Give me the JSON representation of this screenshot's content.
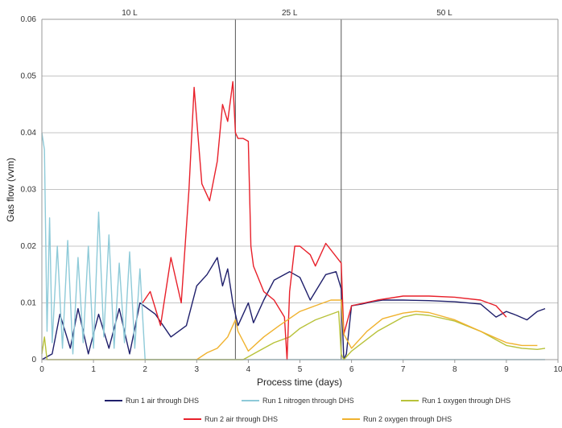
{
  "chart_data": {
    "type": "line",
    "xlabel": "Process time (days)",
    "ylabel": "Gas flow (vvm)",
    "xlim": [
      0,
      10
    ],
    "ylim": [
      0,
      0.06
    ],
    "x_ticks": [
      "0",
      "1",
      "2",
      "3",
      "4",
      "5",
      "6",
      "7",
      "8",
      "9",
      "10"
    ],
    "y_ticks": [
      "0",
      "0.01",
      "0.02",
      "0.03",
      "0.04",
      "0.05",
      "0.06"
    ],
    "grid": "horizontal",
    "legend_position": "bottom",
    "phase_dividers": [
      3.75,
      5.8
    ],
    "phase_labels": [
      {
        "label": "10 L",
        "x": 1.7
      },
      {
        "label": "25 L",
        "x": 4.8
      },
      {
        "label": "50 L",
        "x": 7.8
      }
    ],
    "series": [
      {
        "name": "Run 1 air through DHS",
        "color": "#1f1f6b",
        "x": [
          0,
          0.2,
          0.35,
          0.55,
          0.7,
          0.9,
          1.1,
          1.3,
          1.5,
          1.7,
          1.9,
          2.2,
          2.5,
          2.8,
          3.0,
          3.2,
          3.4,
          3.5,
          3.6,
          3.7,
          3.8,
          4.0,
          4.1,
          4.3,
          4.5,
          4.8,
          5.0,
          5.2,
          5.5,
          5.7,
          5.8,
          5.85,
          5.9,
          6.0,
          6.2,
          6.4,
          6.6,
          7.0,
          7.5,
          8.0,
          8.5,
          8.8,
          9.0,
          9.2,
          9.4,
          9.6,
          9.75
        ],
        "y": [
          0.0,
          0.001,
          0.008,
          0.002,
          0.009,
          0.001,
          0.008,
          0.002,
          0.009,
          0.001,
          0.01,
          0.008,
          0.004,
          0.006,
          0.013,
          0.015,
          0.018,
          0.013,
          0.016,
          0.01,
          0.006,
          0.01,
          0.0065,
          0.0105,
          0.014,
          0.0155,
          0.0145,
          0.0105,
          0.015,
          0.0155,
          0.0125,
          0.0,
          0.001,
          0.0095,
          0.0098,
          0.0102,
          0.0105,
          0.0105,
          0.0104,
          0.0102,
          0.0098,
          0.0075,
          0.0085,
          0.0078,
          0.007,
          0.0085,
          0.009
        ]
      },
      {
        "name": "Run 1 nitrogen through DHS",
        "color": "#8ecad8",
        "x": [
          0,
          0.05,
          0.1,
          0.15,
          0.2,
          0.3,
          0.4,
          0.5,
          0.6,
          0.7,
          0.8,
          0.9,
          1.0,
          1.1,
          1.2,
          1.3,
          1.4,
          1.5,
          1.6,
          1.7,
          1.8,
          1.9,
          2.0,
          3.0,
          4.0,
          5.0,
          6.0,
          7.0,
          8.0,
          9.0,
          9.75
        ],
        "y": [
          0.04,
          0.037,
          0.005,
          0.025,
          0.003,
          0.02,
          0.002,
          0.021,
          0.001,
          0.018,
          0.003,
          0.02,
          0.002,
          0.026,
          0.004,
          0.022,
          0.002,
          0.017,
          0.003,
          0.019,
          0.002,
          0.016,
          0.0,
          0.0,
          0.0,
          0.0,
          0.0,
          0.0,
          0.0,
          0.0,
          0.0
        ]
      },
      {
        "name": "Run 1 oxygen through DHS",
        "color": "#b8c23a",
        "x": [
          0,
          0.05,
          0.1,
          1.0,
          2.0,
          3.0,
          3.9,
          4.0,
          4.2,
          4.5,
          4.8,
          5.0,
          5.3,
          5.6,
          5.75,
          5.8,
          5.85,
          6.0,
          6.5,
          7.0,
          7.25,
          7.5,
          8.0,
          8.5,
          9.0,
          9.3,
          9.6,
          9.75
        ],
        "y": [
          0.001,
          0.004,
          0.0,
          0.0,
          0.0,
          0.0,
          0.0,
          0.0005,
          0.0015,
          0.003,
          0.004,
          0.0055,
          0.007,
          0.008,
          0.0085,
          0.001,
          0.0,
          0.0015,
          0.005,
          0.0075,
          0.008,
          0.0078,
          0.0068,
          0.005,
          0.0025,
          0.002,
          0.0018,
          0.002
        ]
      },
      {
        "name": "Run 2 air through DHS",
        "color": "#e8202a",
        "x": [
          1.95,
          2.1,
          2.3,
          2.5,
          2.7,
          2.85,
          2.95,
          3.1,
          3.25,
          3.4,
          3.5,
          3.6,
          3.7,
          3.75,
          3.8,
          3.9,
          4.0,
          4.05,
          4.1,
          4.3,
          4.5,
          4.7,
          4.75,
          4.8,
          4.9,
          5.0,
          5.2,
          5.3,
          5.5,
          5.8,
          5.85,
          6.0,
          6.5,
          7.0,
          7.5,
          8.0,
          8.5,
          8.8,
          9.0
        ],
        "y": [
          0.01,
          0.012,
          0.006,
          0.018,
          0.01,
          0.03,
          0.048,
          0.031,
          0.028,
          0.035,
          0.045,
          0.042,
          0.049,
          0.04,
          0.039,
          0.039,
          0.0385,
          0.02,
          0.0165,
          0.012,
          0.0105,
          0.0075,
          0.0,
          0.012,
          0.02,
          0.02,
          0.0185,
          0.0165,
          0.0205,
          0.017,
          0.0045,
          0.0095,
          0.0105,
          0.0112,
          0.0112,
          0.011,
          0.0105,
          0.0095,
          0.0075
        ]
      },
      {
        "name": "Run 2 oxygen through DHS",
        "color": "#f0b22e",
        "x": [
          3.0,
          3.2,
          3.4,
          3.6,
          3.75,
          3.8,
          4.0,
          4.3,
          4.6,
          5.0,
          5.3,
          5.6,
          5.8,
          5.85,
          6.0,
          6.3,
          6.6,
          7.0,
          7.25,
          7.5,
          8.0,
          8.5,
          9.0,
          9.3,
          9.6
        ],
        "y": [
          0.0,
          0.0012,
          0.002,
          0.004,
          0.007,
          0.005,
          0.0015,
          0.004,
          0.006,
          0.0085,
          0.0095,
          0.0105,
          0.0105,
          0.0045,
          0.002,
          0.005,
          0.0072,
          0.0082,
          0.0085,
          0.0083,
          0.007,
          0.005,
          0.003,
          0.0025,
          0.0025
        ]
      }
    ]
  }
}
